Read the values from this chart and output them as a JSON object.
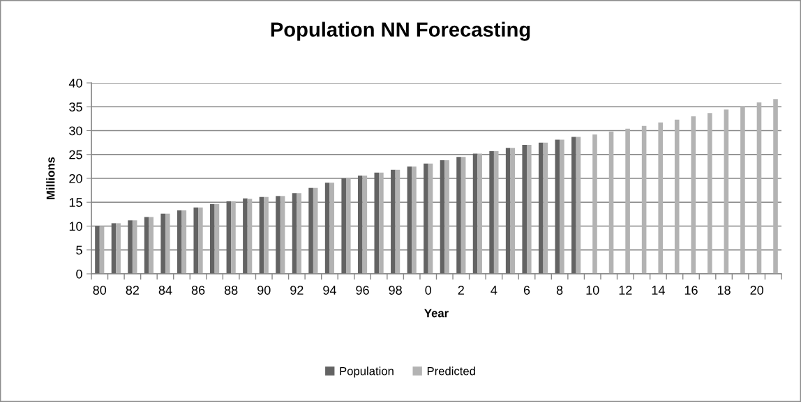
{
  "chart_data": {
    "type": "bar",
    "title": "Population NN Forecasting",
    "xlabel": "Year",
    "ylabel": "Millions",
    "categories": [
      "80",
      null,
      "82",
      null,
      "84",
      null,
      "86",
      null,
      "88",
      null,
      "90",
      null,
      "92",
      null,
      "94",
      null,
      "96",
      null,
      "98",
      null,
      "0",
      null,
      "2",
      null,
      "4",
      null,
      "6",
      null,
      "8",
      null,
      "10",
      null,
      "12",
      null,
      "14",
      null,
      "16",
      null,
      "18",
      null,
      "20",
      null
    ],
    "series": [
      {
        "name": "Population",
        "color": "#636363",
        "values": [
          10.0,
          10.6,
          11.2,
          11.9,
          12.6,
          13.3,
          13.9,
          14.6,
          15.2,
          15.8,
          16.1,
          16.3,
          16.9,
          18.0,
          19.1,
          20.0,
          20.6,
          21.2,
          21.8,
          22.5,
          23.1,
          23.8,
          24.5,
          25.2,
          25.7,
          26.4,
          27.0,
          27.5,
          28.1,
          28.7,
          null,
          null,
          null,
          null,
          null,
          null,
          null,
          null,
          null,
          null,
          null,
          null
        ]
      },
      {
        "name": "Predicted",
        "color": "#b3b3b3",
        "values": [
          10.0,
          10.6,
          11.2,
          11.9,
          12.6,
          13.3,
          13.9,
          14.6,
          15.2,
          15.7,
          16.1,
          16.3,
          16.9,
          18.0,
          19.1,
          20.0,
          20.6,
          21.2,
          21.8,
          22.5,
          23.1,
          23.8,
          24.5,
          25.2,
          25.7,
          26.4,
          27.0,
          27.5,
          28.1,
          28.7,
          29.2,
          29.8,
          30.4,
          31.0,
          31.7,
          32.3,
          33.0,
          33.7,
          34.4,
          35.1,
          35.9,
          36.6
        ]
      }
    ],
    "ylim": [
      0,
      40
    ],
    "yticks": [
      0,
      5,
      10,
      15,
      20,
      25,
      30,
      35,
      40
    ],
    "grid": "y",
    "legend": "bottom"
  }
}
